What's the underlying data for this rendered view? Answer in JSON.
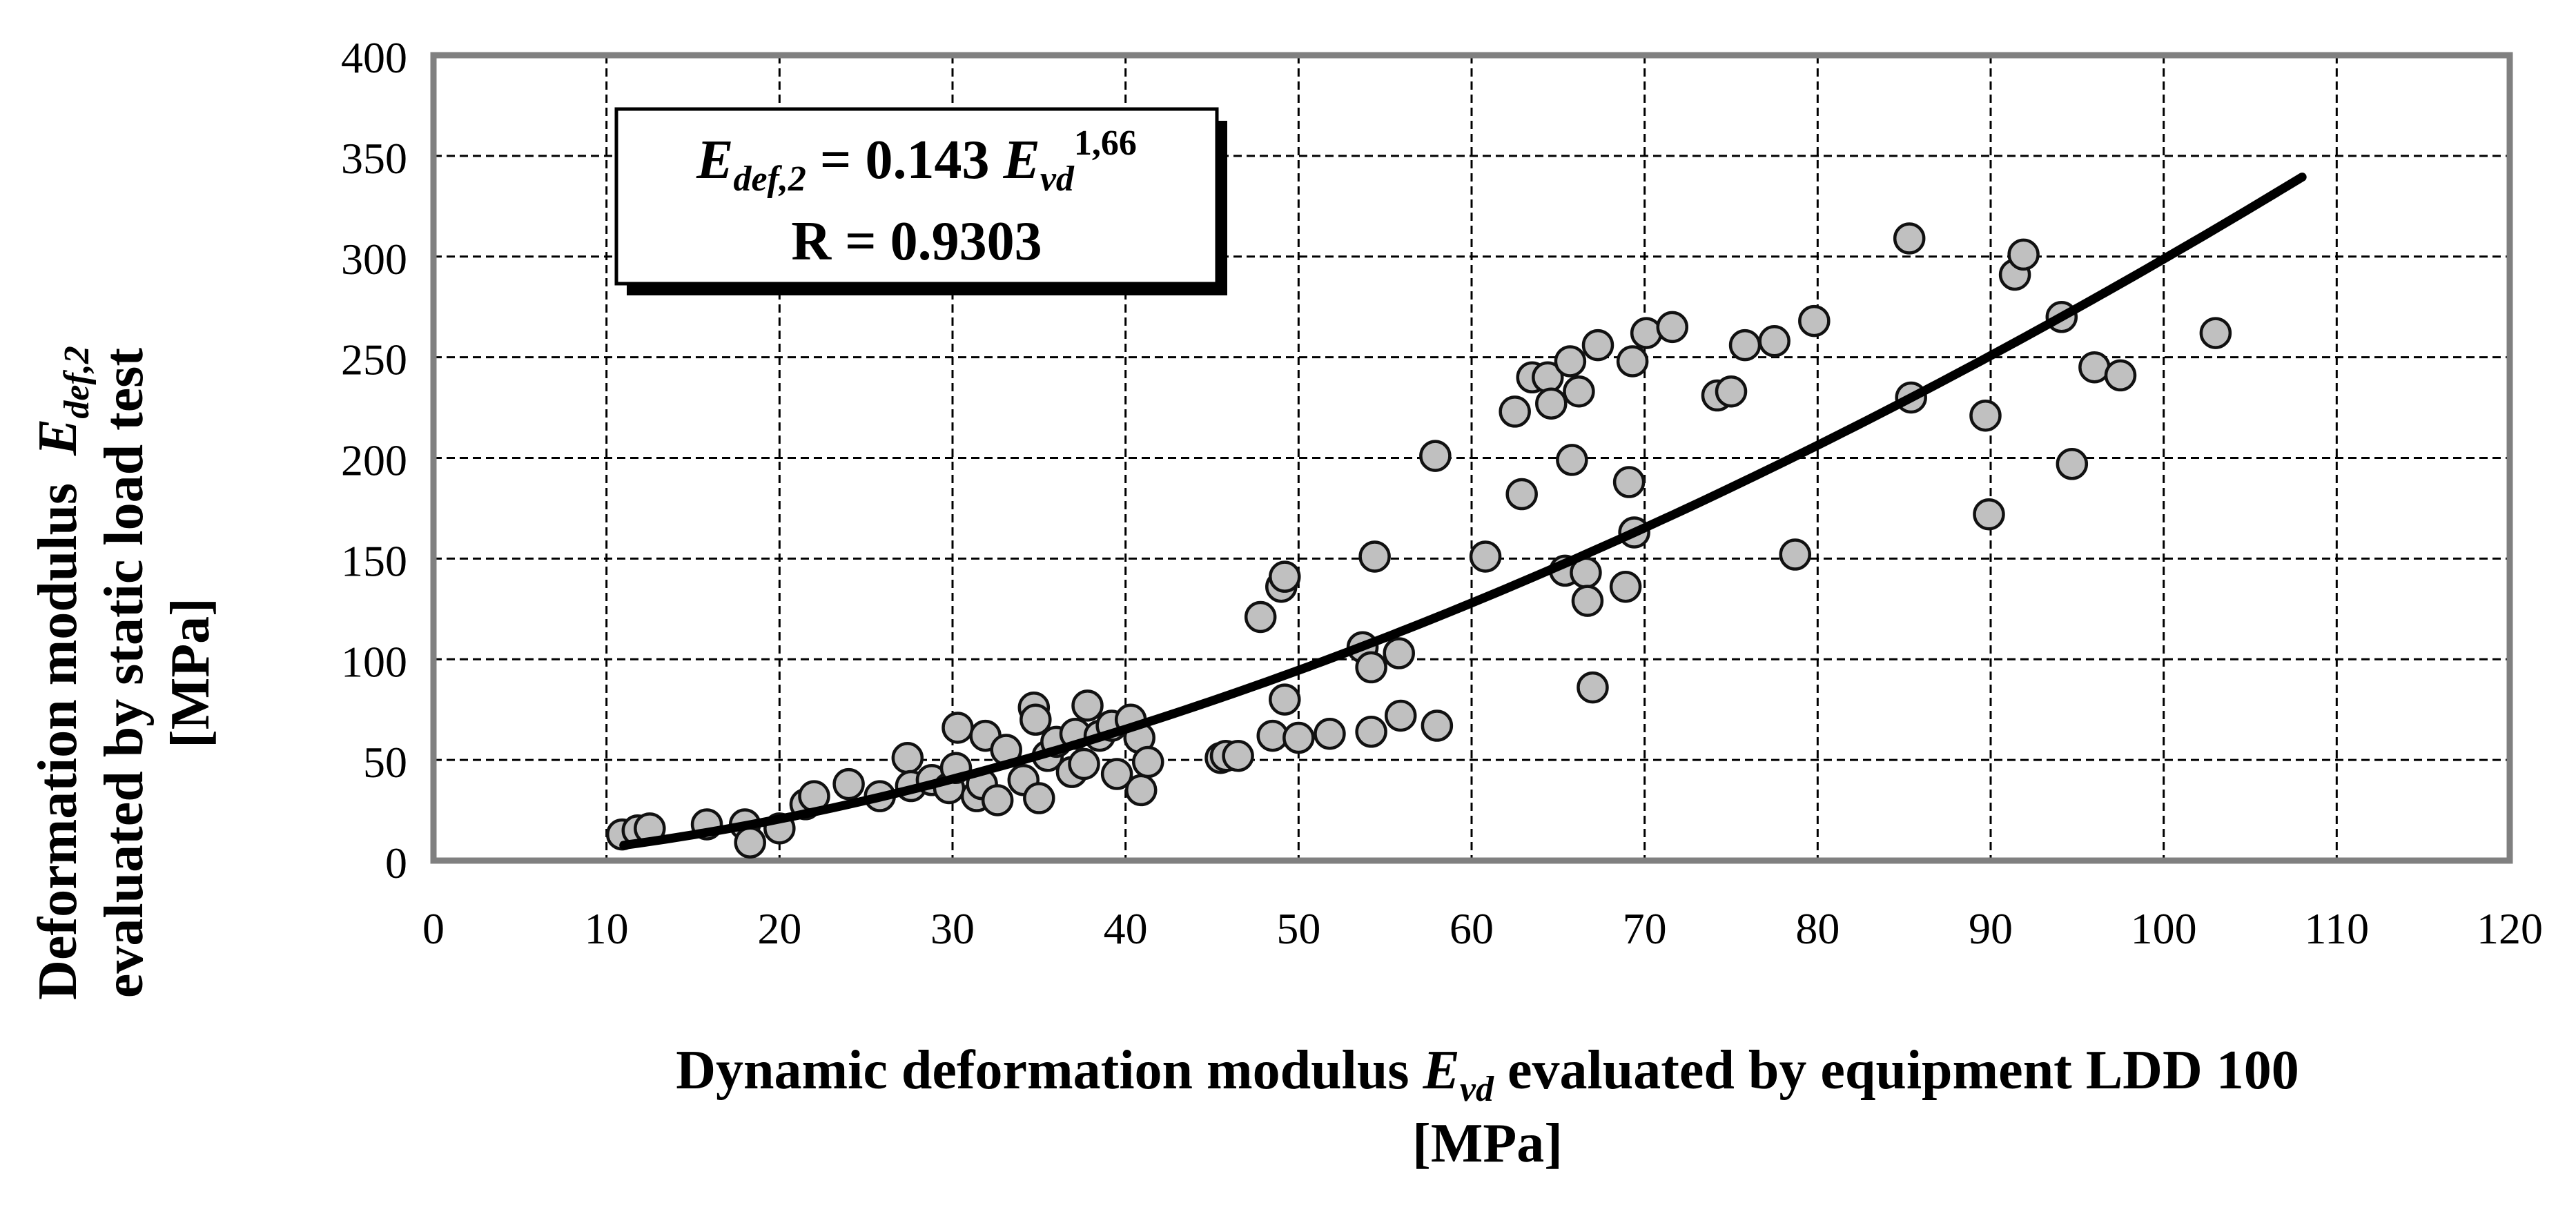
{
  "chart_data": {
    "type": "scatter",
    "xlabel": {
      "prefix": "Dynamic deformation modulus ",
      "symbol": "E",
      "subscript": "vd",
      "suffix": " evaluated by equipment LDD 100",
      "line2": "[MPa]"
    },
    "ylabel": {
      "line1_prefix": "Deformation modulus  ",
      "line1_symbol": "E",
      "line1_subscript": "def,2",
      "line2": "evaluated by static load test",
      "line3": "[MPa]"
    },
    "annotation": {
      "eq_lhs": "E",
      "eq_lhs_sub": "def,2",
      "eq_mid": " = 0.143 ",
      "eq_rhs": "E",
      "eq_rhs_sub": "vd",
      "eq_exp": "1,66",
      "r_text": "R = 0.9303"
    },
    "xlim": [
      0,
      120
    ],
    "ylim": [
      0,
      400
    ],
    "xticks": [
      0,
      10,
      20,
      30,
      40,
      50,
      60,
      70,
      80,
      90,
      100,
      110,
      120
    ],
    "yticks": [
      0,
      50,
      100,
      150,
      200,
      250,
      300,
      350,
      400
    ],
    "grid": true,
    "fit": {
      "a": 0.143,
      "b": 1.66,
      "x_range": [
        11,
        108
      ]
    },
    "colors": {
      "points": "#c0c0c0",
      "point_edge": "#111111",
      "fit": "#000000",
      "grid": "#000000",
      "frame": "#808080"
    },
    "series": [
      {
        "values": [
          [
            10.9,
            13
          ],
          [
            11.8,
            15
          ],
          [
            12.5,
            16
          ],
          [
            15.8,
            18
          ],
          [
            18,
            18
          ],
          [
            18.3,
            9
          ],
          [
            20,
            16
          ],
          [
            21.5,
            28
          ],
          [
            22,
            32
          ],
          [
            24,
            38
          ],
          [
            25.8,
            32
          ],
          [
            27.4,
            51
          ],
          [
            27.6,
            37
          ],
          [
            28.8,
            40
          ],
          [
            29.8,
            36
          ],
          [
            30.2,
            46
          ],
          [
            30.3,
            66
          ],
          [
            31.4,
            32
          ],
          [
            31.7,
            38
          ],
          [
            31.9,
            62
          ],
          [
            32.6,
            30
          ],
          [
            33.1,
            55
          ],
          [
            34.1,
            40
          ],
          [
            34.7,
            76
          ],
          [
            34.8,
            70
          ],
          [
            35,
            31
          ],
          [
            35.5,
            52
          ],
          [
            36,
            59
          ],
          [
            36.9,
            44
          ],
          [
            37.1,
            63
          ],
          [
            37.6,
            48
          ],
          [
            37.8,
            77
          ],
          [
            38.5,
            62
          ],
          [
            39.2,
            67
          ],
          [
            39.5,
            43
          ],
          [
            40.3,
            70
          ],
          [
            40.8,
            61
          ],
          [
            40.9,
            35
          ],
          [
            41.3,
            49
          ],
          [
            45.5,
            51
          ],
          [
            45.8,
            52
          ],
          [
            46.5,
            52
          ],
          [
            47.8,
            121
          ],
          [
            48.5,
            62
          ],
          [
            49,
            136
          ],
          [
            49.2,
            141
          ],
          [
            49.2,
            80
          ],
          [
            50,
            61
          ],
          [
            51.8,
            63
          ],
          [
            53.7,
            106
          ],
          [
            54.2,
            64
          ],
          [
            54.2,
            96
          ],
          [
            54.4,
            151
          ],
          [
            55.8,
            103
          ],
          [
            55.9,
            72
          ],
          [
            57.9,
            201
          ],
          [
            58,
            67
          ],
          [
            60.8,
            151
          ],
          [
            62.5,
            223
          ],
          [
            62.9,
            182
          ],
          [
            63.5,
            240
          ],
          [
            64.4,
            240
          ],
          [
            64.6,
            227
          ],
          [
            65.4,
            144
          ],
          [
            65.7,
            248
          ],
          [
            65.8,
            199
          ],
          [
            66.2,
            233
          ],
          [
            66.6,
            143
          ],
          [
            66.7,
            129
          ],
          [
            67,
            86
          ],
          [
            67.3,
            256
          ],
          [
            68.9,
            136
          ],
          [
            69.1,
            188
          ],
          [
            69.3,
            248
          ],
          [
            69.4,
            163
          ],
          [
            70.1,
            262
          ],
          [
            71.6,
            265
          ],
          [
            74.2,
            231
          ],
          [
            75,
            233
          ],
          [
            75.8,
            256
          ],
          [
            77.5,
            258
          ],
          [
            78.7,
            152
          ],
          [
            79.8,
            268
          ],
          [
            85.3,
            309
          ],
          [
            85.4,
            230
          ],
          [
            89.7,
            221
          ],
          [
            89.9,
            172
          ],
          [
            91.4,
            291
          ],
          [
            91.9,
            301
          ],
          [
            94.1,
            270
          ],
          [
            94.7,
            197
          ],
          [
            96,
            245
          ],
          [
            97.5,
            241
          ],
          [
            103,
            262
          ]
        ]
      }
    ]
  }
}
